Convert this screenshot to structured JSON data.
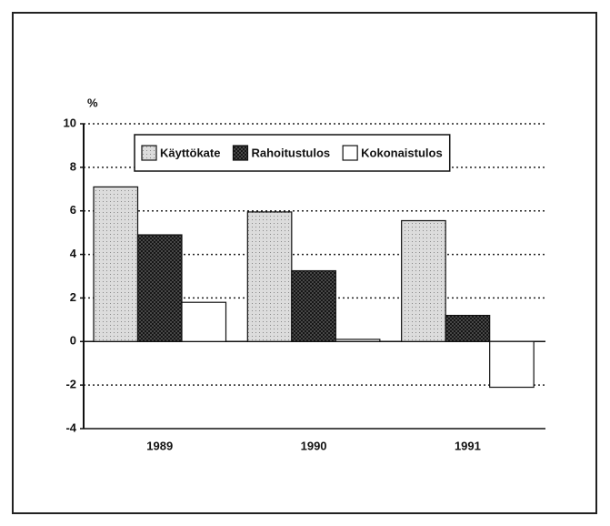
{
  "chart_data": {
    "type": "bar",
    "ylabel": "%",
    "categories": [
      "1989",
      "1990",
      "1991"
    ],
    "series": [
      {
        "name": "Käyttökate",
        "color": "#dcdcdc",
        "values": [
          7.1,
          5.95,
          5.55
        ]
      },
      {
        "name": "Rahoitustulos",
        "color": "#5a5a5a",
        "values": [
          4.9,
          3.25,
          1.2
        ]
      },
      {
        "name": "Kokonaistulos",
        "color": "#ffffff",
        "values": [
          1.8,
          0.1,
          -2.1
        ]
      }
    ],
    "ylim": [
      -4,
      10
    ],
    "yticks": [
      10,
      8,
      6,
      4,
      2,
      0,
      -2,
      -4
    ],
    "grid": true
  }
}
